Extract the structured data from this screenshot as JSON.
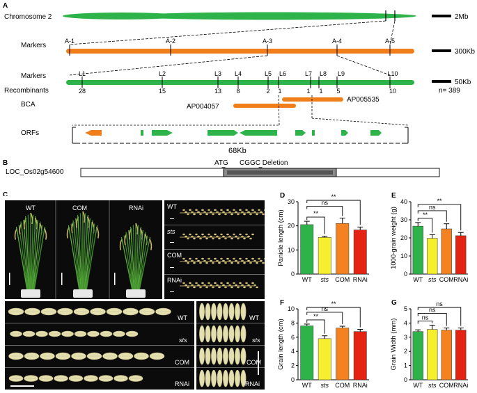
{
  "panels": {
    "A": "A",
    "B": "B",
    "C": "C",
    "D": "D",
    "E": "E",
    "F": "F",
    "G": "G"
  },
  "map": {
    "chromosome_label": "Chromosome 2",
    "markers_label_1": "Markers",
    "markers_label_2": "Markers",
    "recombinants_label": "Recombinants",
    "bca_label": "BCA",
    "orfs_label": "ORFs",
    "scale_2mb": "2Mb",
    "scale_300kb": "300Kb",
    "scale_50kb": "50Kb",
    "n_label": "n= 389",
    "markers_a": [
      "A-1",
      "A-2",
      "A-3",
      "A-4",
      "A-5"
    ],
    "markers_l": [
      "L1",
      "L2",
      "L3",
      "L4",
      "L5",
      "L6",
      "L7",
      "L8",
      "L9",
      "L10"
    ],
    "recombinant_counts": [
      "28",
      "15",
      "13",
      "8",
      "2",
      "1",
      "1",
      "1",
      "5",
      "10"
    ],
    "bac_1": "AP004057",
    "bac_2": "AP005535",
    "orf_span": "68Kb",
    "colors": {
      "green": "#2db34a",
      "orange": "#f07f1a"
    }
  },
  "gene": {
    "name": "LOC_Os02g54600",
    "atg": "ATG",
    "deletion": "CGGC Deletion"
  },
  "photos": {
    "plants": [
      "WT",
      "COM",
      "RNAi"
    ],
    "panicles": [
      "WT",
      "sts",
      "COM",
      "RNAi"
    ],
    "grains_length": [
      "WT",
      "sts",
      "COM",
      "RNAi"
    ],
    "grains_width": [
      "WT",
      "sts",
      "COM",
      "RNAi"
    ]
  },
  "chart_data": [
    {
      "panel": "D",
      "type": "bar",
      "categories": [
        "WT",
        "sts",
        "COM",
        "RNAi"
      ],
      "values": [
        20.5,
        15.2,
        21.0,
        18.3
      ],
      "errors": [
        1.4,
        0.5,
        2.2,
        1.2
      ],
      "ylabel": "Panicle length (cm)",
      "ylim": [
        0,
        30
      ],
      "yticks": [
        "0",
        "10",
        "20",
        "30"
      ],
      "significance": [
        {
          "from": 0,
          "to": 1,
          "label": "**"
        },
        {
          "from": 0,
          "to": 2,
          "label": "ns"
        },
        {
          "from": 0,
          "to": 3,
          "label": "**"
        }
      ]
    },
    {
      "panel": "E",
      "type": "bar",
      "categories": [
        "WT",
        "sts",
        "COM",
        "RNAi"
      ],
      "values": [
        26.5,
        19.8,
        25.0,
        21.2
      ],
      "errors": [
        2.0,
        2.0,
        2.8,
        1.8
      ],
      "ylabel": "1000-grain weight (g)",
      "ylim": [
        0,
        40
      ],
      "yticks": [
        "0",
        "10",
        "20",
        "30",
        "40"
      ],
      "significance": [
        {
          "from": 0,
          "to": 1,
          "label": "**"
        },
        {
          "from": 0,
          "to": 2,
          "label": "ns"
        },
        {
          "from": 0,
          "to": 3,
          "label": "**"
        }
      ]
    },
    {
      "panel": "F",
      "type": "bar",
      "categories": [
        "WT",
        "sts",
        "COM",
        "RNAi"
      ],
      "values": [
        7.6,
        5.8,
        7.3,
        6.8
      ],
      "errors": [
        0.25,
        0.4,
        0.25,
        0.3
      ],
      "ylabel": "Grain length (cm)",
      "ylim": [
        0,
        10
      ],
      "yticks": [
        "0",
        "2",
        "4",
        "6",
        "8",
        "10"
      ],
      "significance": [
        {
          "from": 0,
          "to": 1,
          "label": "**"
        },
        {
          "from": 0,
          "to": 2,
          "label": "ns"
        },
        {
          "from": 0,
          "to": 3,
          "label": "**"
        }
      ]
    },
    {
      "panel": "G",
      "type": "bar",
      "categories": [
        "WT",
        "sts",
        "COM",
        "RNAi"
      ],
      "values": [
        3.4,
        3.55,
        3.5,
        3.5
      ],
      "errors": [
        0.12,
        0.3,
        0.15,
        0.15
      ],
      "ylabel": "Grain Width (mm)",
      "ylim": [
        0,
        5
      ],
      "yticks": [
        "0",
        "1",
        "2",
        "3",
        "4",
        "5"
      ],
      "significance": [
        {
          "from": 0,
          "to": 1,
          "label": "ns"
        },
        {
          "from": 0,
          "to": 2,
          "label": "ns"
        },
        {
          "from": 0,
          "to": 3,
          "label": "ns"
        }
      ]
    }
  ],
  "bar_colors": [
    "#2db34a",
    "#f5ef2e",
    "#f58220",
    "#e42313"
  ]
}
